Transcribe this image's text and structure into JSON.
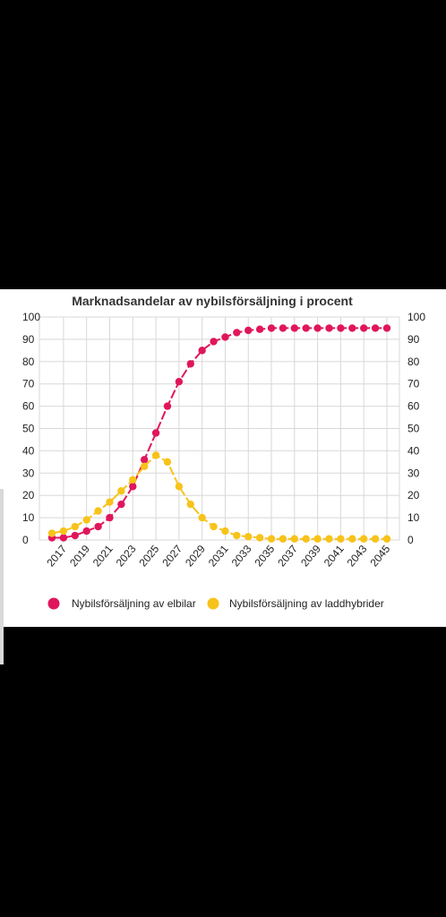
{
  "colors": {
    "background": "#000000",
    "panel": "#ffffff",
    "grid": "#d8d8d8",
    "ev": "#e0165c",
    "phev": "#f7c31a"
  },
  "chart_data": {
    "type": "line",
    "title": "Marknadsandelar av nybilsförsäljning i procent",
    "xlabel": "",
    "ylabel": "",
    "x": [
      2016,
      2017,
      2018,
      2019,
      2020,
      2021,
      2022,
      2023,
      2024,
      2025,
      2026,
      2027,
      2028,
      2029,
      2030,
      2031,
      2032,
      2033,
      2034,
      2035,
      2036,
      2037,
      2038,
      2039,
      2040,
      2041,
      2042,
      2043,
      2044,
      2045
    ],
    "x_tick_labels": [
      "2017",
      "2019",
      "2021",
      "2023",
      "2025",
      "2027",
      "2029",
      "2031",
      "2033",
      "2035",
      "2037",
      "2039",
      "2041",
      "2043",
      "2045"
    ],
    "y_tick_labels": [
      "0",
      "10",
      "20",
      "30",
      "40",
      "50",
      "60",
      "70",
      "80",
      "90",
      "100"
    ],
    "ylim": [
      0,
      100
    ],
    "grid": true,
    "legend_position": "bottom",
    "series": [
      {
        "name": "Nybilsförsäljning av elbilar",
        "values": [
          1,
          1,
          2,
          4,
          6,
          10,
          16,
          24,
          36,
          48,
          60,
          71,
          79,
          85,
          89,
          91,
          93,
          94,
          94.5,
          95,
          95,
          95,
          95,
          95,
          95,
          95,
          95,
          95,
          95,
          95
        ]
      },
      {
        "name": "Nybilsförsäljning av laddhybrider",
        "values": [
          3,
          4,
          6,
          9,
          13,
          17,
          22,
          27,
          33,
          38,
          35,
          24,
          16,
          10,
          6,
          4,
          2,
          1.5,
          1,
          0.5,
          0.5,
          0.5,
          0.5,
          0.5,
          0.5,
          0.5,
          0.5,
          0.5,
          0.5,
          0.5
        ]
      }
    ]
  }
}
